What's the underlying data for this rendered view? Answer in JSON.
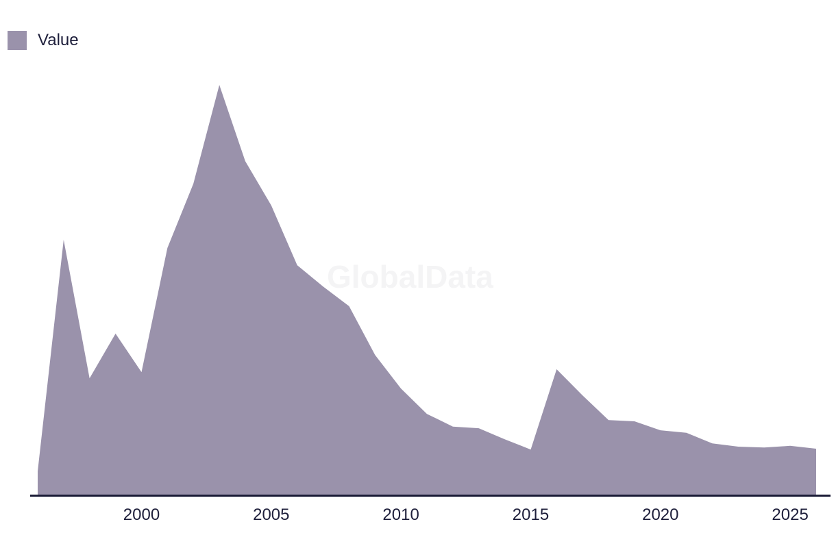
{
  "legend": {
    "label": "Value",
    "swatch_color": "#9a92ab"
  },
  "watermark": "GlobalData",
  "colors": {
    "background": "#ffffff",
    "area_fill": "#9a92ab",
    "axis_line": "#1a1b36",
    "label_text": "#1e1f3b",
    "watermark_text": "#f4f4f5"
  },
  "chart_data": {
    "type": "area",
    "title": "",
    "xlabel": "",
    "ylabel": "",
    "series_name": "Value",
    "x": [
      1996,
      1997,
      1998,
      1999,
      2000,
      2001,
      2002,
      2003,
      2004,
      2005,
      2006,
      2007,
      2008,
      2009,
      2010,
      2011,
      2012,
      2013,
      2014,
      2015,
      2016,
      2017,
      2018,
      2019,
      2020,
      2021,
      2022,
      2023,
      2024,
      2025,
      2026
    ],
    "values": [
      5.7,
      62.2,
      28.4,
      39.3,
      29.9,
      60.2,
      75.9,
      100.0,
      81.4,
      70.6,
      56.0,
      50.8,
      46.0,
      34.1,
      25.9,
      19.7,
      16.6,
      16.2,
      13.5,
      11.0,
      30.6,
      24.2,
      18.2,
      17.9,
      15.7,
      15.1,
      12.5,
      11.7,
      11.5,
      11.9,
      11.2
    ],
    "value_scale_note": "y-axis not shown in chart; values are relative estimates with the 2003 peak = 100",
    "x_tick_labels": [
      "2000",
      "2005",
      "2010",
      "2015",
      "2020",
      "2025"
    ],
    "xlim": [
      1996,
      2026
    ],
    "ylim": [
      0,
      100
    ],
    "grid": false,
    "y_axis_visible": false,
    "legend_position": "top-left"
  }
}
